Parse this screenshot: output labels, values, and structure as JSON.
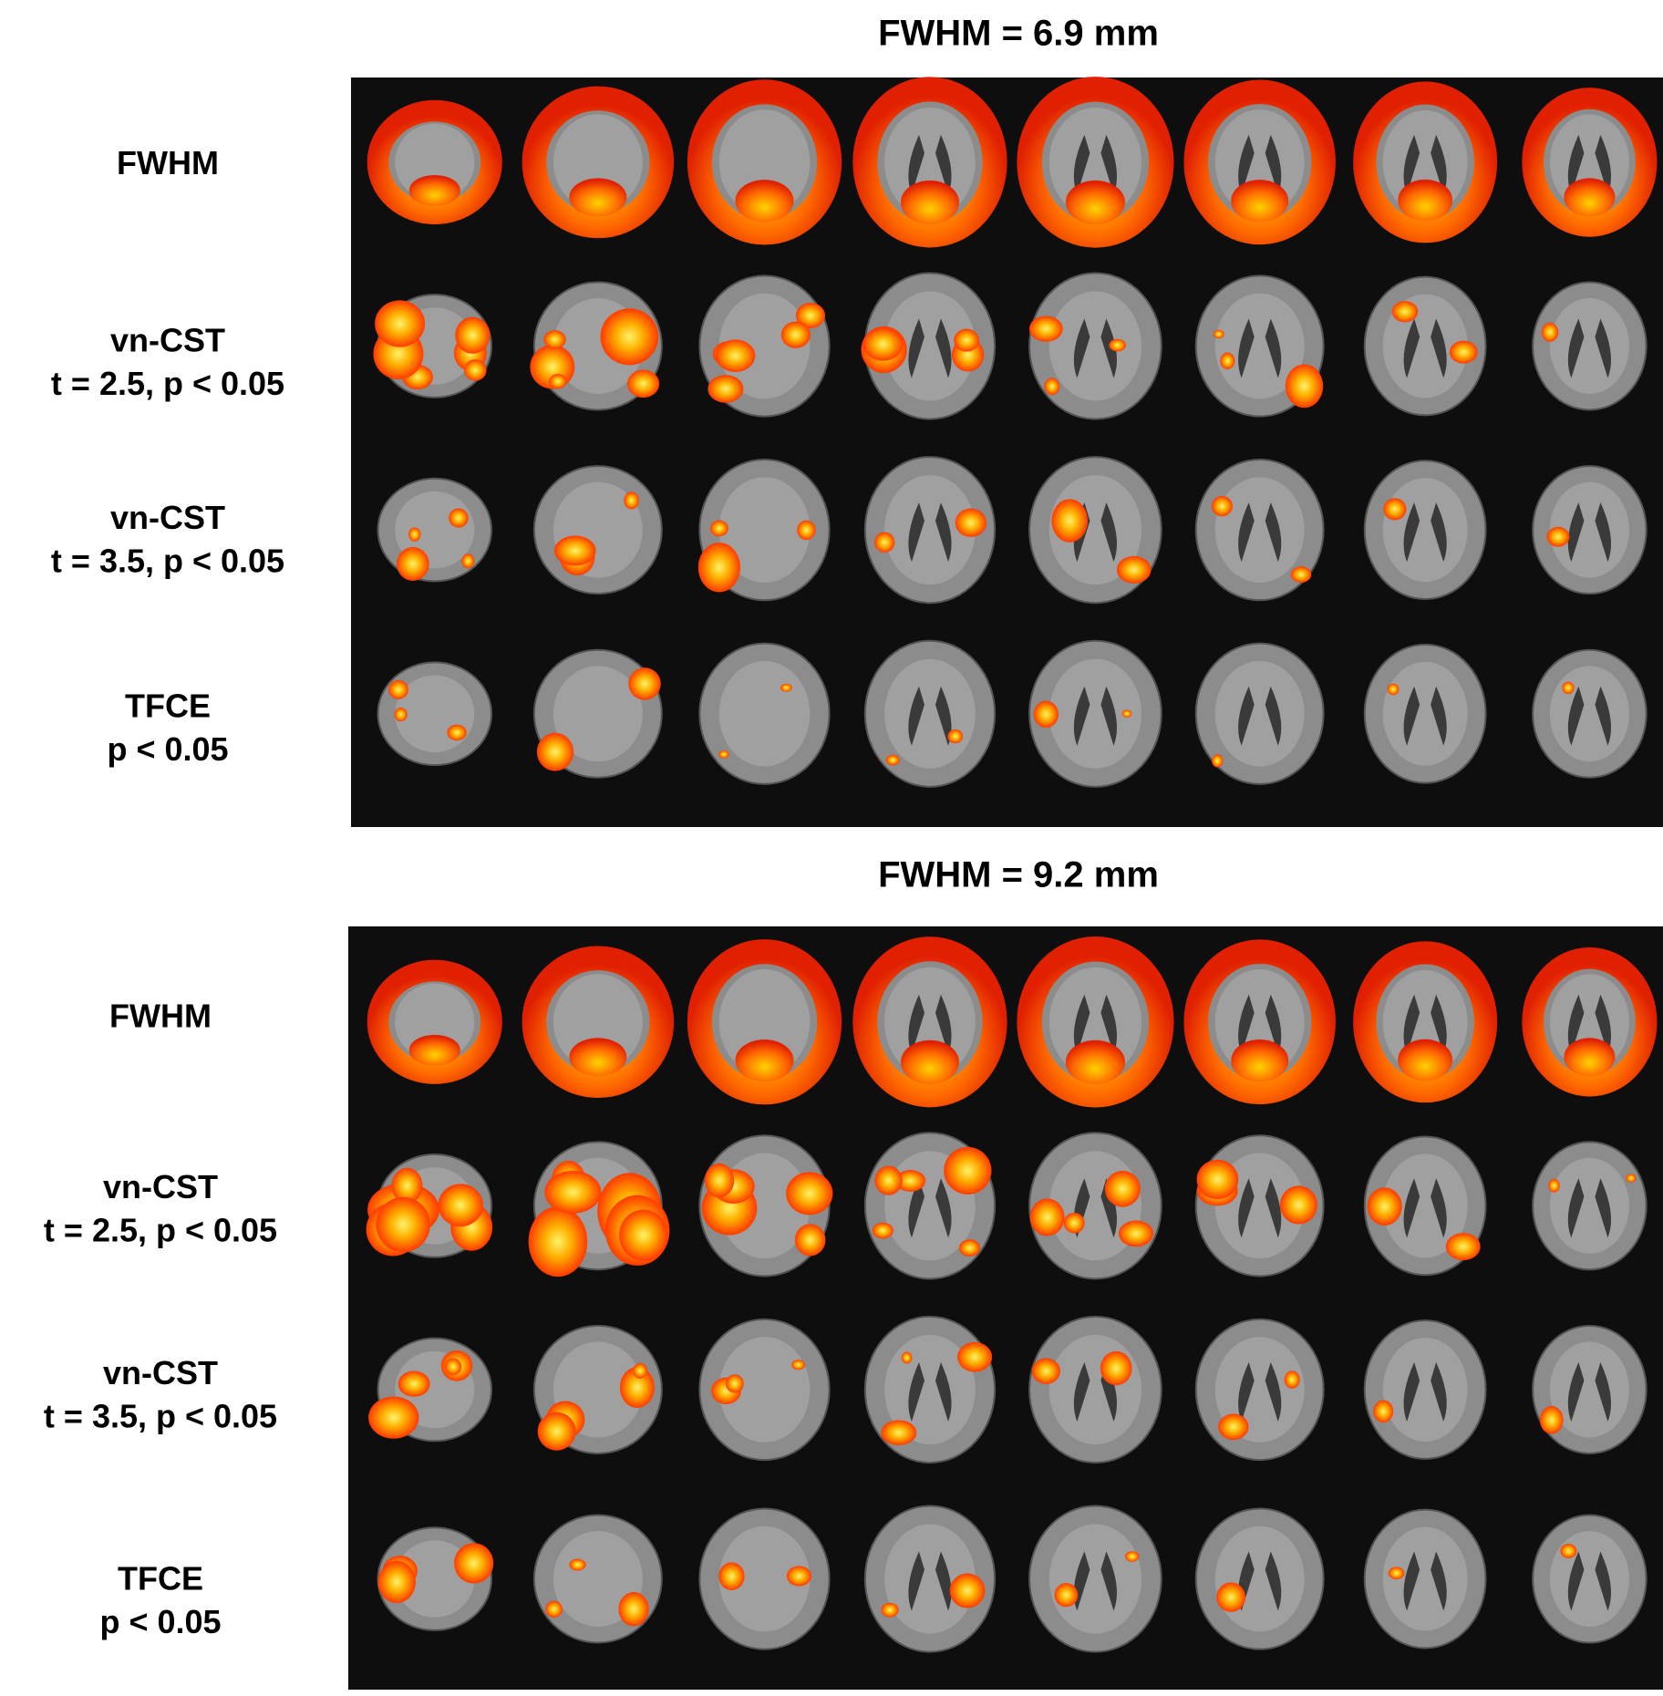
{
  "panels": [
    {
      "title": "FWHM = 6.9 mm",
      "rows": [
        [
          "FWHM"
        ],
        [
          "vn-CST",
          "t = 2.5, p < 0.05"
        ],
        [
          "vn-CST",
          "t = 3.5, p < 0.05"
        ],
        [
          "TFCE",
          "p < 0.05"
        ]
      ]
    },
    {
      "title": "FWHM = 9.2 mm",
      "rows": [
        [
          "FWHM"
        ],
        [
          "vn-CST",
          "t = 2.5, p < 0.05"
        ],
        [
          "vn-CST",
          "t = 3.5, p < 0.05"
        ],
        [
          "TFCE",
          "p < 0.05"
        ]
      ]
    }
  ]
}
